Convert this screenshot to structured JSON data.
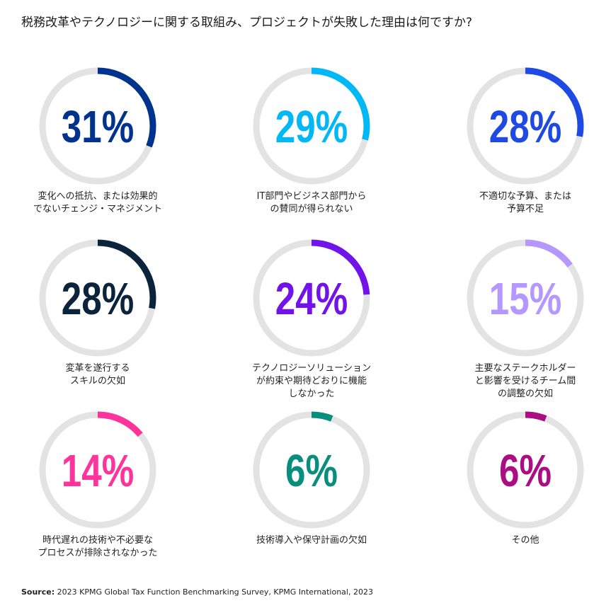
{
  "chart_data": {
    "type": "gauge",
    "title": "税務改革やテクノロジーに関する取組み、プロジェクトが失敗した理由は何ですか?",
    "categories": [
      "変化への抵抗、または効果的\nでないチェンジ・マネジメント",
      "IT部門やビジネス部門から\nの賛同が得られない",
      "不適切な予算、または\n予算不足",
      "変革を遂行する\nスキルの欠如",
      "テクノロジーソリューション\nが約束や期待どおりに機能\nしなかった",
      "主要なステークホルダー\nと影響を受けるチーム間\nの調整の欠如",
      "時代遅れの技術や不必要な\nプロセスが排除されなかった",
      "技術導入や保守計画の欠如",
      "その他"
    ],
    "values": [
      31,
      29,
      28,
      28,
      24,
      15,
      14,
      6,
      6
    ],
    "value_labels": [
      "31%",
      "29%",
      "28%",
      "28%",
      "24%",
      "15%",
      "14%",
      "6%",
      "6%"
    ],
    "colors": [
      "#00338d",
      "#00b8f5",
      "#1e49e2",
      "#0c233c",
      "#7213ea",
      "#b497ff",
      "#fd349c",
      "#098e7e",
      "#ab0d82"
    ],
    "ylim": [
      0,
      100
    ],
    "source_label": "Source:",
    "source": "2023 KPMG Global Tax Function Benchmarking Survey, KPMG International, 2023"
  }
}
